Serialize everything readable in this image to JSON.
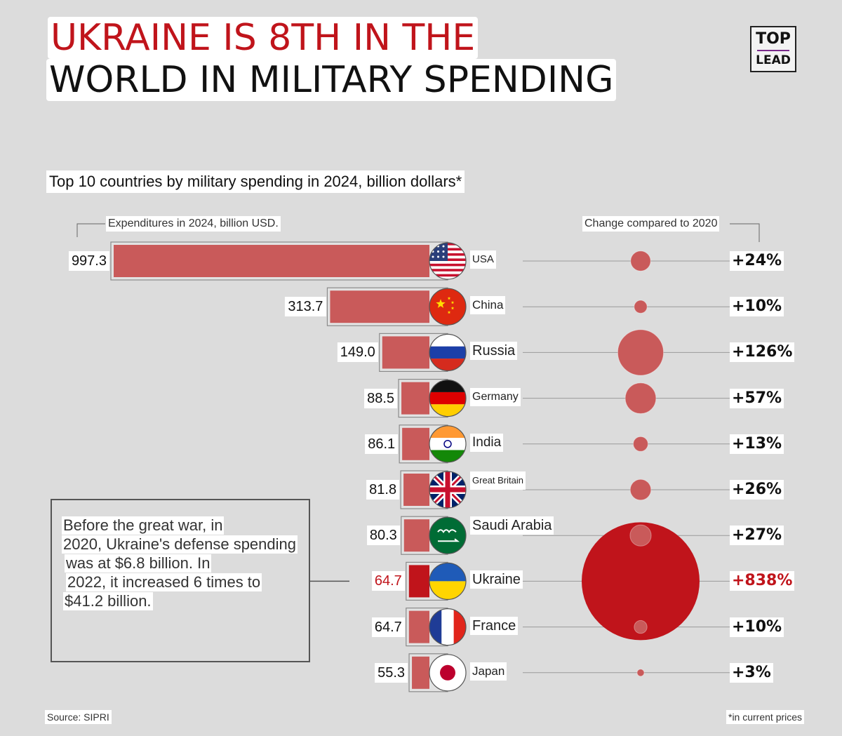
{
  "title": {
    "line1": "UKRAINE IS 8TH IN THE",
    "line2": "WORLD IN MILITARY SPENDING"
  },
  "logo": {
    "top": "TOP",
    "bottom": "LEAD"
  },
  "subtitle": "Top 10 countries by military spending in 2024, billion dollars*",
  "column_left_label": "Expenditures in 2024, billion USD.",
  "column_right_label": "Change compared to 2020",
  "note": {
    "lines": [
      "Before the great war, in",
      "2020, Ukraine's defense spending",
      "was at $6.8 billion. In",
      "2022, it increased 6 times to",
      "$41.2 billion."
    ]
  },
  "source": "Source: SIPRI",
  "footnote": "*in current prices",
  "colors": {
    "bar": "#c95a5a",
    "highlight": "#c0141b",
    "bubble": "#c95a5a"
  },
  "chart_data": {
    "type": "bar",
    "title": "Top 10 countries by military spending in 2024, billion dollars*",
    "categories": [
      "USA",
      "China",
      "Russia",
      "Germany",
      "India",
      "Great Britain",
      "Saudi Arabia",
      "Ukraine",
      "France",
      "Japan"
    ],
    "series": [
      {
        "name": "Expenditures in 2024, billion USD.",
        "values": [
          997.3,
          313.7,
          149.0,
          88.5,
          86.1,
          81.8,
          80.3,
          64.7,
          64.7,
          55.3
        ],
        "labels": [
          "997.3",
          "313.7",
          "149.0",
          "88.5",
          "86.1",
          "81.8",
          "80.3",
          "64.7",
          "64.7",
          "55.3"
        ]
      },
      {
        "name": "Change compared to 2020",
        "values": [
          24,
          10,
          126,
          57,
          13,
          26,
          27,
          838,
          10,
          3
        ],
        "labels": [
          "+24%",
          "+10%",
          "+126%",
          "+57%",
          "+13%",
          "+26%",
          "+27%",
          "+838%",
          "+10%",
          "+3%"
        ]
      }
    ],
    "flags": [
      "usa-flag-icon",
      "china-flag-icon",
      "russia-flag-icon",
      "germany-flag-icon",
      "india-flag-icon",
      "uk-flag-icon",
      "saudi-flag-icon",
      "ukraine-flag-icon",
      "france-flag-icon",
      "japan-flag-icon"
    ],
    "highlight_index": 7
  }
}
